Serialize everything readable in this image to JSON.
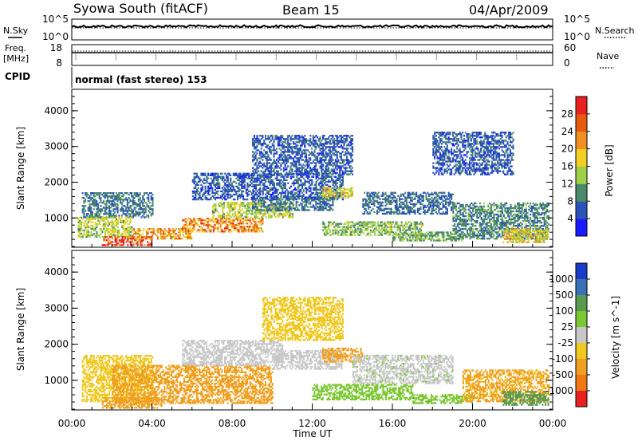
{
  "header": {
    "station": "Syowa South (fitACF)",
    "beam": "Beam 15",
    "date": "04/Apr/2009"
  },
  "side_labels": {
    "nsky": "N.Sky",
    "nsearch": "N.Search",
    "freq_line1": "Freq.",
    "freq_line2": "[MHz]",
    "nave": "Nave",
    "cpid": "CPID"
  },
  "cpid_text": "normal (fast stereo) 153",
  "chart_data": [
    {
      "type": "line",
      "name": "noise-panel",
      "left_ticks": [
        "10^5",
        "10^0"
      ],
      "right_ticks": [
        "10^5",
        "10^0"
      ],
      "series": [
        {
          "name": "N.Sky",
          "style": "solid"
        },
        {
          "name": "N.Search",
          "style": "dotted"
        }
      ]
    },
    {
      "type": "line",
      "name": "frequency-panel",
      "left_ticks": [
        "18",
        "8"
      ],
      "right_ticks": [
        "60",
        "0"
      ],
      "ylim_left": [
        8,
        18
      ],
      "ylim_right": [
        0,
        60
      ],
      "series": [
        {
          "name": "Freq.",
          "approx_value": 12
        },
        {
          "name": "Nave",
          "style": "dotted"
        }
      ]
    },
    {
      "type": "heatmap",
      "name": "power-panel",
      "ylabel": "Slant Range [km]",
      "y_ticks": [
        "1000",
        "2000",
        "3000",
        "4000"
      ],
      "ylim": [
        180,
        4600
      ],
      "colorbar": {
        "label": "Power [dB]",
        "ticks": [
          "4",
          "8",
          "12",
          "16",
          "20",
          "24",
          "28"
        ],
        "colors": [
          "#1a1aff",
          "#2a52b8",
          "#4a8a6a",
          "#9fd04a",
          "#f0d020",
          "#f09020",
          "#e85a10",
          "#e82020"
        ],
        "range": [
          0,
          30
        ]
      },
      "regions": [
        {
          "t": [
            0.5,
            4.0
          ],
          "r": [
            1000,
            1700
          ],
          "v": 8
        },
        {
          "t": [
            0.3,
            3.0
          ],
          "r": [
            450,
            1000
          ],
          "v": 14
        },
        {
          "t": [
            1.5,
            4.0
          ],
          "r": [
            220,
            450
          ],
          "v": 26
        },
        {
          "t": [
            3.0,
            6.0
          ],
          "r": [
            400,
            700
          ],
          "v": 20
        },
        {
          "t": [
            5.5,
            9.5
          ],
          "r": [
            600,
            1000
          ],
          "v": 21
        },
        {
          "t": [
            7.0,
            11.0
          ],
          "r": [
            1000,
            1450
          ],
          "v": 14
        },
        {
          "t": [
            9.0,
            13.0
          ],
          "r": [
            1200,
            1600
          ],
          "v": 8
        },
        {
          "t": [
            6.0,
            13.5
          ],
          "r": [
            1500,
            2250
          ],
          "v": 6
        },
        {
          "t": [
            12.5,
            14.0
          ],
          "r": [
            1550,
            1850
          ],
          "v": 16
        },
        {
          "t": [
            9.0,
            14.0
          ],
          "r": [
            2200,
            3300
          ],
          "v": 6
        },
        {
          "t": [
            12.5,
            17.5
          ],
          "r": [
            500,
            900
          ],
          "v": 12
        },
        {
          "t": [
            14.5,
            19.0
          ],
          "r": [
            1100,
            1700
          ],
          "v": 7
        },
        {
          "t": [
            16.0,
            19.5
          ],
          "r": [
            350,
            600
          ],
          "v": 11
        },
        {
          "t": [
            19.0,
            23.8
          ],
          "r": [
            400,
            1400
          ],
          "v": 9
        },
        {
          "t": [
            21.5,
            23.8
          ],
          "r": [
            300,
            700
          ],
          "v": 17
        },
        {
          "t": [
            18.0,
            22.0
          ],
          "r": [
            2200,
            3400
          ],
          "v": 6
        }
      ]
    },
    {
      "type": "heatmap",
      "name": "velocity-panel",
      "ylabel": "Slant Range [km]",
      "xlabel": "Time UT",
      "x_ticks": [
        "00:00",
        "04:00",
        "08:00",
        "12:00",
        "16:00",
        "20:00",
        "00:00"
      ],
      "xlim_hours": [
        0,
        24
      ],
      "y_ticks": [
        "1000",
        "2000",
        "3000",
        "4000"
      ],
      "ylim": [
        180,
        4600
      ],
      "colorbar": {
        "label": "Velocity [m s^-1]",
        "ticks": [
          "1000",
          "500",
          "100",
          "25",
          "-25",
          "-100",
          "-500",
          "-1000"
        ],
        "colors": [
          "#1a3cc8",
          "#3a70b8",
          "#5a9a50",
          "#7cc832",
          "#c8c8c8",
          "#f0c820",
          "#f0a020",
          "#f07810",
          "#e82020"
        ],
        "range": [
          -1200,
          1200
        ]
      },
      "regions": [
        {
          "t": [
            0.5,
            4.0
          ],
          "r": [
            400,
            1700
          ],
          "v": -60
        },
        {
          "t": [
            1.5,
            4.5
          ],
          "r": [
            220,
            500
          ],
          "v": -200
        },
        {
          "t": [
            2.0,
            10.0
          ],
          "r": [
            350,
            1400
          ],
          "v": -150
        },
        {
          "t": [
            5.5,
            10.5
          ],
          "r": [
            1400,
            2100
          ],
          "v": 0
        },
        {
          "t": [
            10.0,
            13.5
          ],
          "r": [
            1300,
            1800
          ],
          "v": 0
        },
        {
          "t": [
            12.5,
            14.5
          ],
          "r": [
            1500,
            1900
          ],
          "v": -250
        },
        {
          "t": [
            9.5,
            13.5
          ],
          "r": [
            2100,
            3300
          ],
          "v": -60
        },
        {
          "t": [
            12.0,
            17.0
          ],
          "r": [
            450,
            900
          ],
          "v": 60
        },
        {
          "t": [
            14.0,
            19.0
          ],
          "r": [
            900,
            1700
          ],
          "v": 20
        },
        {
          "t": [
            17.0,
            20.0
          ],
          "r": [
            350,
            600
          ],
          "v": 80
        },
        {
          "t": [
            19.5,
            23.8
          ],
          "r": [
            400,
            1300
          ],
          "v": -120
        },
        {
          "t": [
            21.5,
            23.8
          ],
          "r": [
            300,
            700
          ],
          "v": 150
        }
      ]
    }
  ]
}
